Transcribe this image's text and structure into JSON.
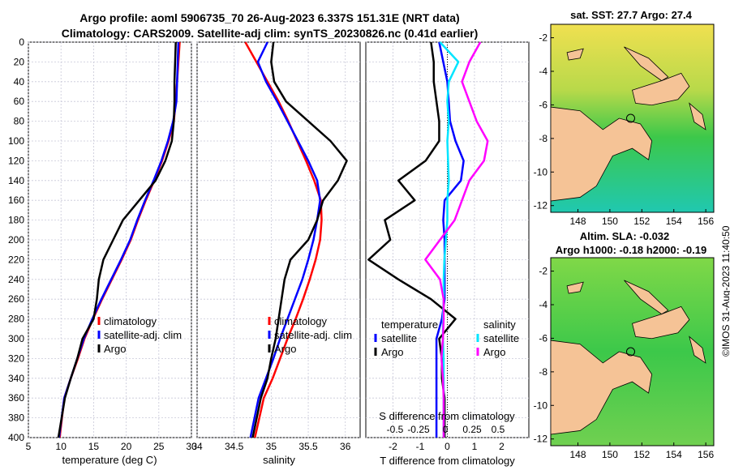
{
  "title_line1": "Argo profile: aoml 5906735_70 26-Aug-2023 6.337S 151.31E (NRT data)",
  "title_line2": "Climatology: CARS2009. Satellite-adj clim: synTS_20230826.nc (0.41d earlier)",
  "stamp": "©IMOS 31-Aug-2023 11:40:50",
  "colors": {
    "climatology": "#ff0000",
    "satellite": "#0000ff",
    "argo": "#000000",
    "sat_salinity": "#00e5ff",
    "argo_salinity": "#ff00ff",
    "land": "#f5c396"
  },
  "chart_data": [
    {
      "type": "line",
      "xlabel": "temperature (deg C)",
      "xlim": [
        5,
        30
      ],
      "ylim": [
        400,
        0
      ],
      "xticks": [
        5,
        10,
        15,
        20,
        25,
        30
      ],
      "yticks": [
        0,
        20,
        40,
        60,
        80,
        100,
        120,
        140,
        160,
        180,
        200,
        220,
        240,
        260,
        280,
        300,
        320,
        340,
        360,
        380,
        400
      ],
      "legend": [
        "climatology",
        "satellite-adj. clim",
        "Argo"
      ],
      "series": [
        {
          "name": "climatology",
          "color": "#ff0000",
          "x": [
            28.2,
            28.0,
            27.8,
            27.6,
            27.3,
            26.5,
            25.5,
            24.3,
            23.0,
            21.8,
            20.7,
            19.3,
            17.8,
            16.3,
            14.9,
            13.6,
            12.6,
            11.5,
            10.5,
            9.8
          ],
          "y": [
            0,
            20,
            40,
            60,
            80,
            100,
            120,
            140,
            160,
            180,
            200,
            220,
            240,
            260,
            280,
            300,
            320,
            340,
            360,
            400
          ]
        },
        {
          "name": "satellite-adj. clim",
          "color": "#0000ff",
          "x": [
            28.0,
            27.9,
            27.8,
            27.7,
            27.2,
            26.4,
            25.4,
            24.2,
            22.9,
            21.7,
            20.6,
            19.2,
            17.7,
            16.2,
            14.8,
            13.5,
            12.5,
            11.5,
            10.5,
            9.7
          ],
          "y": [
            0,
            20,
            40,
            60,
            80,
            100,
            120,
            140,
            160,
            180,
            200,
            220,
            240,
            260,
            280,
            300,
            320,
            340,
            360,
            400
          ]
        },
        {
          "name": "Argo",
          "color": "#000000",
          "x": [
            27.6,
            27.5,
            27.4,
            27.4,
            27.3,
            27.0,
            26.0,
            24.5,
            22.0,
            19.5,
            18.0,
            16.5,
            15.8,
            15.5,
            15.0,
            13.3,
            12.5,
            11.5,
            10.6,
            9.6
          ],
          "y": [
            0,
            20,
            40,
            60,
            80,
            100,
            120,
            140,
            160,
            180,
            200,
            220,
            240,
            260,
            280,
            300,
            320,
            340,
            360,
            400
          ]
        }
      ]
    },
    {
      "type": "line",
      "xlabel": "salinity",
      "xlim": [
        34,
        36.2
      ],
      "ylim": [
        400,
        0
      ],
      "xticks": [
        34,
        34.5,
        35,
        35.5,
        36
      ],
      "legend": [
        "climatology",
        "satellite-adj. clim",
        "Argo"
      ],
      "series": [
        {
          "name": "climatology",
          "color": "#ff0000",
          "x": [
            34.65,
            34.8,
            34.95,
            35.1,
            35.23,
            35.35,
            35.47,
            35.58,
            35.67,
            35.68,
            35.66,
            35.6,
            35.52,
            35.43,
            35.33,
            35.22,
            35.12,
            35.02,
            34.9,
            34.78
          ],
          "y": [
            0,
            20,
            40,
            60,
            80,
            100,
            120,
            140,
            160,
            180,
            200,
            220,
            240,
            260,
            280,
            300,
            320,
            340,
            360,
            400
          ]
        },
        {
          "name": "satellite-adj. clim",
          "color": "#0000ff",
          "x": [
            34.95,
            34.82,
            34.93,
            35.08,
            35.22,
            35.36,
            35.5,
            35.62,
            35.66,
            35.62,
            35.57,
            35.5,
            35.42,
            35.32,
            35.22,
            35.12,
            35.03,
            34.93,
            34.83,
            34.72
          ],
          "y": [
            0,
            20,
            40,
            60,
            80,
            100,
            120,
            140,
            160,
            180,
            200,
            220,
            240,
            260,
            280,
            300,
            320,
            340,
            360,
            400
          ]
        },
        {
          "name": "Argo",
          "color": "#000000",
          "x": [
            35.03,
            35.0,
            35.04,
            35.2,
            35.5,
            35.8,
            36.02,
            35.9,
            35.7,
            35.62,
            35.5,
            35.26,
            35.18,
            35.14,
            35.1,
            35.06,
            35.0,
            34.95,
            34.86,
            34.75
          ],
          "y": [
            0,
            20,
            40,
            60,
            80,
            100,
            120,
            140,
            160,
            180,
            200,
            220,
            240,
            260,
            280,
            300,
            320,
            340,
            360,
            400
          ]
        }
      ]
    },
    {
      "type": "line",
      "xlabel": "T difference from climatology",
      "top_label": "S difference from climatology",
      "xlim": [
        -3,
        3
      ],
      "ylim": [
        400,
        0
      ],
      "xticks": [
        -2,
        -1,
        0,
        1,
        2
      ],
      "top_ticks": [
        -0.5,
        -0.25,
        0,
        0.25,
        0.5
      ],
      "legend_left": [
        "temperature",
        "satellite",
        "Argo"
      ],
      "legend_right": [
        "salinity",
        "satellite",
        "Argo"
      ],
      "series": [
        {
          "name": "T satellite",
          "color": "#0000ff",
          "x": [
            -0.3,
            -0.15,
            0.0,
            0.05,
            0.1,
            0.3,
            0.6,
            0.5,
            -0.1,
            -0.15,
            -0.1,
            -0.1,
            -0.1,
            -0.1,
            -0.2,
            -0.4,
            -0.4,
            -0.4,
            -0.4,
            -0.4
          ],
          "y": [
            0,
            20,
            40,
            60,
            80,
            100,
            120,
            140,
            160,
            180,
            200,
            220,
            240,
            260,
            280,
            300,
            320,
            340,
            360,
            400
          ]
        },
        {
          "name": "T Argo",
          "color": "#000000",
          "x": [
            -0.6,
            -0.5,
            -0.5,
            -0.4,
            -0.3,
            -0.3,
            -0.8,
            -1.8,
            -1.2,
            -2.3,
            -2.1,
            -2.9,
            -1.8,
            -0.6,
            0.3,
            -0.3,
            -0.2,
            -0.2,
            -0.1,
            -0.1
          ],
          "y": [
            0,
            20,
            40,
            60,
            80,
            100,
            120,
            140,
            160,
            180,
            200,
            220,
            240,
            260,
            280,
            300,
            320,
            340,
            360,
            400
          ]
        },
        {
          "name": "S satellite",
          "color": "#00e5ff",
          "x": [
            -0.1,
            0.15,
            0.02,
            0.0,
            0.02,
            0.0,
            0.01,
            0.02,
            0.0,
            0.0,
            -0.02,
            -0.04,
            -0.05,
            -0.05,
            -0.06,
            -0.06,
            -0.05,
            -0.05,
            -0.05,
            -0.05
          ],
          "y": [
            0,
            20,
            40,
            60,
            80,
            100,
            120,
            140,
            160,
            180,
            200,
            220,
            240,
            260,
            280,
            300,
            320,
            340,
            360,
            400
          ]
        },
        {
          "name": "S Argo",
          "color": "#ff00ff",
          "x": [
            0.45,
            0.3,
            0.2,
            0.3,
            0.4,
            0.55,
            0.5,
            0.3,
            0.2,
            0.1,
            -0.1,
            -0.3,
            -0.1,
            -0.05,
            -0.05,
            -0.06,
            -0.08,
            -0.06,
            -0.05,
            -0.05
          ],
          "y": [
            0,
            20,
            40,
            60,
            80,
            100,
            120,
            140,
            160,
            180,
            200,
            220,
            240,
            260,
            280,
            300,
            320,
            340,
            360,
            400
          ]
        }
      ]
    },
    {
      "type": "heatmap",
      "title": "sat. SST: 27.7 Argo: 27.4",
      "xticks": [
        148,
        150,
        152,
        154,
        156
      ],
      "yticks": [
        -2,
        -4,
        -6,
        -8,
        -10,
        -12
      ]
    },
    {
      "type": "heatmap",
      "title_line1": "Altim. SLA: -0.032",
      "title_line2": "Argo h1000: -0.18 h2000: -0.19",
      "xticks": [
        148,
        150,
        152,
        154,
        156
      ],
      "yticks": [
        -2,
        -4,
        -6,
        -8,
        -10,
        -12
      ]
    }
  ]
}
